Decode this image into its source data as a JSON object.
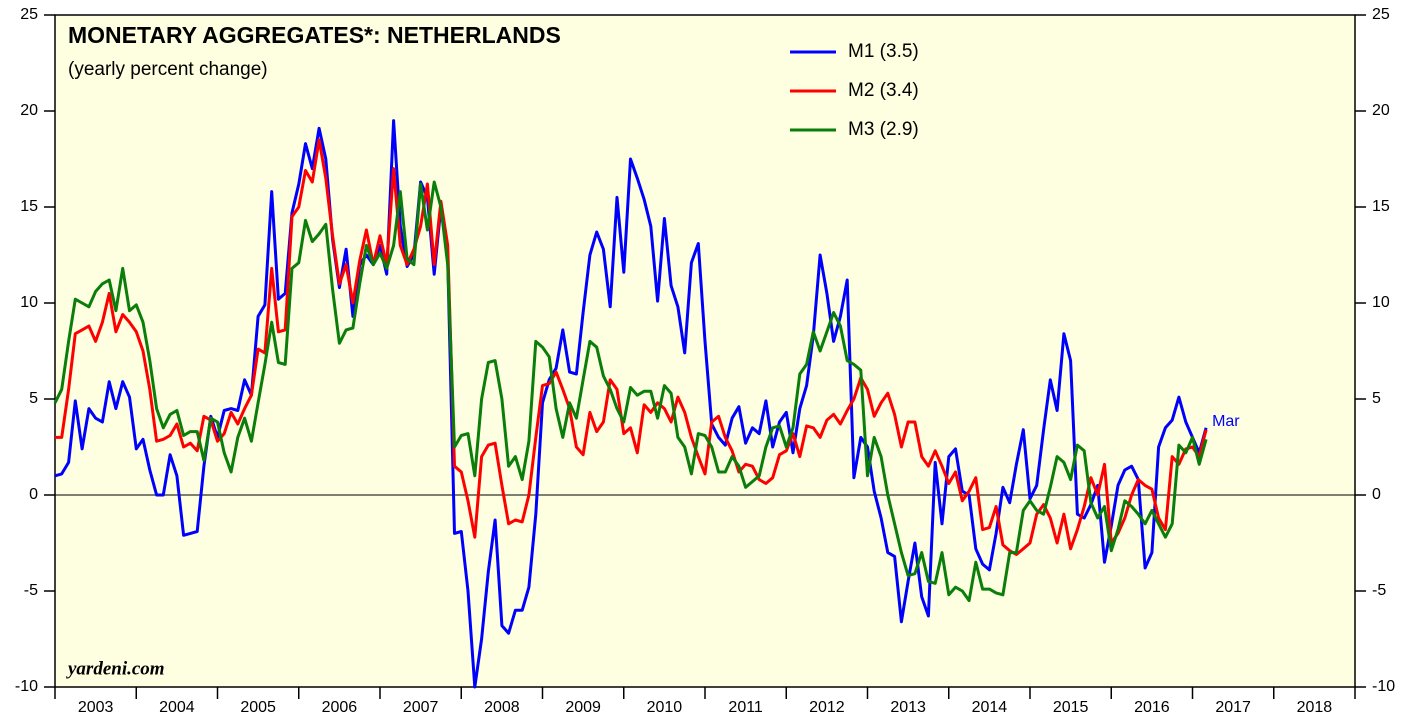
{
  "chart_data": {
    "type": "line",
    "title": "MONETARY AGGREGATES*: NETHERLANDS",
    "subtitle": "(yearly percent change)",
    "source": "yardeni.com",
    "annotation": "Mar",
    "categories": [
      "2003",
      "2004",
      "2005",
      "2006",
      "2007",
      "2008",
      "2009",
      "2010",
      "2011",
      "2012",
      "2013",
      "2014",
      "2015",
      "2016",
      "2017",
      "2018"
    ],
    "xlim": [
      2003,
      2019
    ],
    "xticks": [
      2003,
      2004,
      2005,
      2006,
      2007,
      2008,
      2009,
      2010,
      2011,
      2012,
      2013,
      2014,
      2015,
      2016,
      2017,
      2018,
      2019
    ],
    "ylim": [
      -10,
      25
    ],
    "yticks": [
      -10,
      -5,
      0,
      5,
      10,
      15,
      20,
      25
    ],
    "grid": false,
    "x": [
      2003,
      2003.083,
      2003.167,
      2003.25,
      2003.333,
      2003.417,
      2003.5,
      2003.583,
      2003.667,
      2003.75,
      2003.833,
      2003.917,
      2004,
      2004.083,
      2004.167,
      2004.25,
      2004.333,
      2004.417,
      2004.5,
      2004.583,
      2004.667,
      2004.75,
      2004.833,
      2004.917,
      2005,
      2005.083,
      2005.167,
      2005.25,
      2005.333,
      2005.417,
      2005.5,
      2005.583,
      2005.667,
      2005.75,
      2005.833,
      2005.917,
      2006,
      2006.083,
      2006.167,
      2006.25,
      2006.333,
      2006.417,
      2006.5,
      2006.583,
      2006.667,
      2006.75,
      2006.833,
      2006.917,
      2007,
      2007.083,
      2007.167,
      2007.25,
      2007.333,
      2007.417,
      2007.5,
      2007.583,
      2007.667,
      2007.75,
      2007.833,
      2007.917,
      2008,
      2008.083,
      2008.167,
      2008.25,
      2008.333,
      2008.417,
      2008.5,
      2008.583,
      2008.667,
      2008.75,
      2008.833,
      2008.917,
      2009,
      2009.083,
      2009.167,
      2009.25,
      2009.333,
      2009.417,
      2009.5,
      2009.583,
      2009.667,
      2009.75,
      2009.833,
      2009.917,
      2010,
      2010.083,
      2010.167,
      2010.25,
      2010.333,
      2010.417,
      2010.5,
      2010.583,
      2010.667,
      2010.75,
      2010.833,
      2010.917,
      2011,
      2011.083,
      2011.167,
      2011.25,
      2011.333,
      2011.417,
      2011.5,
      2011.583,
      2011.667,
      2011.75,
      2011.833,
      2011.917,
      2012,
      2012.083,
      2012.167,
      2012.25,
      2012.333,
      2012.417,
      2012.5,
      2012.583,
      2012.667,
      2012.75,
      2012.833,
      2012.917,
      2013,
      2013.083,
      2013.167,
      2013.25,
      2013.333,
      2013.417,
      2013.5,
      2013.583,
      2013.667,
      2013.75,
      2013.833,
      2013.917,
      2014,
      2014.083,
      2014.167,
      2014.25,
      2014.333,
      2014.417,
      2014.5,
      2014.583,
      2014.667,
      2014.75,
      2014.833,
      2014.917,
      2015,
      2015.083,
      2015.167,
      2015.25,
      2015.333,
      2015.417,
      2015.5,
      2015.583,
      2015.667,
      2015.75,
      2015.833,
      2015.917,
      2016,
      2016.083,
      2016.167,
      2016.25,
      2016.333,
      2016.417,
      2016.5,
      2016.583,
      2016.667,
      2016.75,
      2016.833,
      2016.917,
      2017,
      2017.083,
      2017.167
    ],
    "series": [
      {
        "name": "M1 (3.5)",
        "color": "#0000ff",
        "values": [
          1.0,
          1.1,
          1.7,
          4.9,
          2.4,
          4.5,
          4.0,
          3.8,
          5.9,
          4.5,
          5.9,
          5.1,
          2.4,
          2.9,
          1.3,
          0.0,
          0.0,
          2.1,
          1.0,
          -2.1,
          -2.0,
          -1.9,
          1.5,
          4.1,
          3.0,
          4.4,
          4.5,
          4.4,
          6.0,
          5.2,
          9.3,
          9.9,
          15.8,
          10.2,
          10.5,
          14.7,
          16.2,
          18.3,
          17.0,
          19.1,
          17.5,
          13.3,
          10.8,
          12.8,
          9.3,
          12.0,
          12.5,
          12.0,
          13.0,
          11.5,
          19.5,
          14.0,
          11.9,
          12.5,
          16.3,
          15.5,
          11.5,
          15.0,
          12.3,
          -2.0,
          -1.9,
          -5.0,
          -10.0,
          -7.5,
          -4.0,
          -1.3,
          -6.8,
          -7.2,
          -6.0,
          -6.0,
          -4.8,
          -1.0,
          4.8,
          6.0,
          6.6,
          8.6,
          6.4,
          6.3,
          9.5,
          12.5,
          13.7,
          12.8,
          9.8,
          15.5,
          11.6,
          17.5,
          16.5,
          15.4,
          14.0,
          10.1,
          14.4,
          10.9,
          9.8,
          7.4,
          12.1,
          13.1,
          8.0,
          3.7,
          3.0,
          2.6,
          4.0,
          4.6,
          2.7,
          3.5,
          3.2,
          4.9,
          2.5,
          3.8,
          4.3,
          2.2,
          4.5,
          5.7,
          8.3,
          12.5,
          10.5,
          8.0,
          9.3,
          11.2,
          0.9,
          3.0,
          2.5,
          0.2,
          -1.2,
          -3.0,
          -3.2,
          -6.6,
          -4.5,
          -2.5,
          -5.3,
          -6.3,
          1.7,
          -1.5,
          2.0,
          2.4,
          0.2,
          0.0,
          -2.8,
          -3.6,
          -3.9,
          -2.0,
          0.4,
          -0.4,
          1.6,
          3.4,
          -0.2,
          0.5,
          3.4,
          6.0,
          4.4,
          8.4,
          7.0,
          -1.0,
          -1.2,
          -0.5,
          0.5,
          -3.5,
          -1.6,
          0.5,
          1.3,
          1.5,
          0.8,
          -3.8,
          -3.0,
          2.5,
          3.5,
          3.9,
          5.1,
          3.8,
          3.0,
          2.2,
          3.5
        ]
      },
      {
        "name": "M2 (3.4)",
        "color": "#ff0000",
        "values": [
          3.0,
          3.0,
          5.5,
          8.4,
          8.6,
          8.8,
          8.0,
          9.0,
          10.5,
          8.5,
          9.4,
          9.0,
          8.5,
          7.5,
          5.5,
          2.8,
          2.9,
          3.1,
          3.7,
          2.5,
          2.7,
          2.3,
          4.1,
          3.9,
          2.8,
          3.2,
          4.3,
          3.7,
          4.5,
          5.2,
          7.6,
          7.4,
          11.8,
          8.5,
          8.6,
          14.5,
          15.0,
          16.9,
          16.3,
          18.5,
          16.5,
          13.5,
          11.0,
          12.0,
          10.0,
          12.2,
          13.8,
          12.0,
          13.5,
          12.0,
          17.0,
          13.0,
          12.0,
          12.8,
          14.0,
          16.2,
          12.0,
          15.3,
          13.0,
          1.5,
          1.2,
          -0.3,
          -2.2,
          2.0,
          2.6,
          2.7,
          0.5,
          -1.5,
          -1.3,
          -1.4,
          0.0,
          3.0,
          5.7,
          5.8,
          6.4,
          5.5,
          4.5,
          2.5,
          2.1,
          4.3,
          3.3,
          3.8,
          6.0,
          5.5,
          3.2,
          3.5,
          2.2,
          4.7,
          4.3,
          4.8,
          4.5,
          3.8,
          5.1,
          4.3,
          3.0,
          2.0,
          1.1,
          3.8,
          4.1,
          3.0,
          2.3,
          1.2,
          1.6,
          1.5,
          0.8,
          0.6,
          0.9,
          2.1,
          2.3,
          3.2,
          2.0,
          3.6,
          3.5,
          3.0,
          3.9,
          4.2,
          3.7,
          4.4,
          5.0,
          6.1,
          5.5,
          4.1,
          4.8,
          5.3,
          4.2,
          2.5,
          3.8,
          3.8,
          2.0,
          1.5,
          2.3,
          1.5,
          0.6,
          1.2,
          -0.3,
          0.2,
          0.9,
          -1.8,
          -1.7,
          -0.6,
          -2.6,
          -2.9,
          -3.1,
          -2.8,
          -2.5,
          -1.0,
          -0.5,
          -1.2,
          -2.5,
          -1.0,
          -2.8,
          -1.8,
          -0.6,
          0.9,
          0.0,
          1.6,
          -2.5,
          -2.0,
          -1.2,
          0.0,
          0.8,
          0.5,
          0.3,
          -1.2,
          -1.8,
          2.0,
          1.6,
          2.4,
          2.5,
          2.0,
          3.4
        ]
      },
      {
        "name": "M3 (2.9)",
        "color": "#0a7d0a",
        "values": [
          4.8,
          5.5,
          8.0,
          10.2,
          10.0,
          9.8,
          10.6,
          11.0,
          11.2,
          9.6,
          11.8,
          9.6,
          9.9,
          9.0,
          7.0,
          4.5,
          3.5,
          4.2,
          4.4,
          3.1,
          3.3,
          3.3,
          1.8,
          4.0,
          3.8,
          2.2,
          1.2,
          3.0,
          4.0,
          2.8,
          4.8,
          6.8,
          9.0,
          6.9,
          6.8,
          11.8,
          12.1,
          14.3,
          13.2,
          13.6,
          14.1,
          10.7,
          7.9,
          8.6,
          8.7,
          11.0,
          13.0,
          12.0,
          12.6,
          11.8,
          13.0,
          15.8,
          12.3,
          12.0,
          16.2,
          13.8,
          16.3,
          15.0,
          12.0,
          2.5,
          3.1,
          3.2,
          1.0,
          5.0,
          6.9,
          7.0,
          5.0,
          1.5,
          2.0,
          0.8,
          2.8,
          8.0,
          7.7,
          7.2,
          4.5,
          3.0,
          4.8,
          4.0,
          6.0,
          8.0,
          7.7,
          6.2,
          5.5,
          4.5,
          3.8,
          5.6,
          5.2,
          5.4,
          5.4,
          4.0,
          5.7,
          5.3,
          3.0,
          2.5,
          1.1,
          3.2,
          3.1,
          2.5,
          1.2,
          1.2,
          2.0,
          1.5,
          0.4,
          0.7,
          1.0,
          2.5,
          3.5,
          3.6,
          2.5,
          3.5,
          6.3,
          6.8,
          8.5,
          7.5,
          8.5,
          9.5,
          8.8,
          7.0,
          6.8,
          6.5,
          1.0,
          3.0,
          2.0,
          0.0,
          -1.5,
          -3.0,
          -4.2,
          -4.1,
          -3.0,
          -4.5,
          -4.6,
          -3.0,
          -5.2,
          -4.8,
          -5.0,
          -5.5,
          -3.5,
          -4.9,
          -4.9,
          -5.1,
          -5.2,
          -3.0,
          -3.0,
          -0.8,
          -0.3,
          -0.8,
          -1.0,
          0.4,
          2.0,
          1.7,
          0.8,
          2.6,
          2.3,
          -0.4,
          -1.2,
          -0.6,
          -2.9,
          -1.8,
          -0.3,
          -0.6,
          -1.0,
          -1.5,
          -0.8,
          -1.5,
          -2.2,
          -1.5,
          2.6,
          2.2,
          3.0,
          1.6,
          2.9
        ]
      }
    ]
  }
}
